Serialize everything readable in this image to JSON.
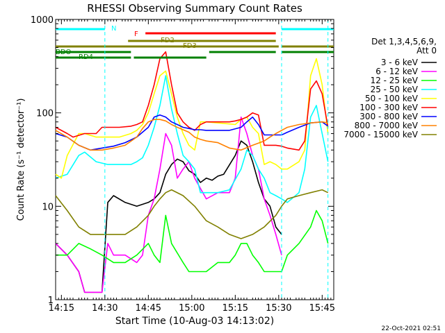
{
  "chart_data": {
    "type": "line",
    "title": "RHESSI Observing Summary Count Rates",
    "xlabel": "Start Time (10-Aug-03 14:13:02)",
    "ylabel": "Count Rate (s⁻¹ detector⁻¹)",
    "yscale": "log",
    "ylim": [
      1,
      1000
    ],
    "xlim_minutes": [
      0,
      96
    ],
    "x_tick_labels": [
      "14:15",
      "14:30",
      "14:45",
      "15:00",
      "15:15",
      "15:30",
      "15:45"
    ],
    "x_tick_minutes": [
      2,
      17,
      32,
      47,
      62,
      77,
      92
    ],
    "y_tick_labels": [
      "1",
      "10",
      "100",
      "1000"
    ],
    "y_tick_values": [
      1,
      10,
      100,
      1000
    ],
    "timestamp": "22-Oct-2021 02:51",
    "legend_header": [
      "Det 1,3,4,5,6,9,",
      "Att 0"
    ],
    "legend_position": "right",
    "series": [
      {
        "name": "3 - 6 keV",
        "color": "#000000",
        "x": [
          0,
          4,
          8,
          10,
          16,
          18,
          20,
          24,
          28,
          32,
          34,
          36,
          38,
          40,
          42,
          44,
          46,
          48,
          50,
          52,
          54,
          56,
          58,
          62,
          64,
          66,
          68,
          70,
          72,
          74,
          76,
          78
        ],
        "y": [
          4,
          3,
          2,
          1.2,
          1.2,
          11,
          13,
          11,
          10,
          11,
          12,
          14,
          22,
          28,
          32,
          30,
          24,
          22,
          18,
          20,
          19,
          21,
          22,
          35,
          50,
          45,
          30,
          18,
          12,
          10,
          6,
          5
        ]
      },
      {
        "name": "6 - 12 keV",
        "color": "#ff00ff",
        "x": [
          0,
          4,
          8,
          10,
          16,
          18,
          20,
          24,
          28,
          30,
          32,
          34,
          36,
          38,
          40,
          42,
          44,
          46,
          48,
          52,
          56,
          60,
          62,
          64,
          66,
          68,
          70,
          72,
          74,
          76,
          78
        ],
        "y": [
          4,
          3,
          2,
          1.2,
          1.2,
          4,
          3,
          3,
          2.5,
          3,
          8,
          12,
          25,
          60,
          45,
          20,
          25,
          30,
          20,
          12,
          14,
          14,
          20,
          90,
          60,
          35,
          25,
          12,
          8,
          5,
          3
        ]
      },
      {
        "name": "12 - 25 keV",
        "color": "#00ff00",
        "x": [
          0,
          4,
          8,
          12,
          16,
          20,
          24,
          28,
          32,
          34,
          36,
          38,
          40,
          44,
          46,
          48,
          52,
          56,
          60,
          62,
          64,
          66,
          68,
          70,
          72,
          74,
          76,
          78,
          80,
          84,
          88,
          90,
          92,
          94
        ],
        "y": [
          3,
          3,
          4,
          3.5,
          3,
          2.5,
          2.5,
          3,
          4,
          3,
          2.5,
          8,
          4,
          2.5,
          2,
          2,
          2,
          2.5,
          2.5,
          3,
          4,
          4,
          3,
          2.5,
          2,
          2,
          2,
          2,
          3,
          4,
          6,
          9,
          7,
          4
        ]
      },
      {
        "name": "25 - 50 keV",
        "color": "#00ffff",
        "x": [
          0,
          4,
          8,
          10,
          14,
          18,
          22,
          26,
          28,
          30,
          32,
          34,
          36,
          38,
          40,
          42,
          44,
          46,
          48,
          50,
          52,
          56,
          60,
          64,
          66,
          68,
          70,
          72,
          74,
          76,
          78,
          80,
          84,
          86,
          88,
          90,
          92,
          94
        ],
        "y": [
          20,
          22,
          35,
          38,
          30,
          28,
          28,
          28,
          30,
          33,
          45,
          70,
          120,
          250,
          110,
          60,
          35,
          30,
          25,
          14,
          14,
          14,
          15,
          25,
          40,
          35,
          25,
          20,
          14,
          13,
          12,
          11,
          14,
          25,
          90,
          120,
          60,
          30
        ]
      },
      {
        "name": "50 - 100 keV",
        "color": "#ffff00",
        "x": [
          0,
          2,
          4,
          8,
          10,
          14,
          18,
          22,
          26,
          28,
          30,
          32,
          34,
          36,
          38,
          40,
          42,
          44,
          46,
          48,
          50,
          52,
          56,
          60,
          62,
          64,
          66,
          68,
          70,
          72,
          74,
          76,
          78,
          80,
          84,
          86,
          88,
          90,
          92,
          94
        ],
        "y": [
          22,
          20,
          35,
          60,
          60,
          55,
          55,
          55,
          60,
          65,
          75,
          100,
          160,
          250,
          280,
          160,
          90,
          60,
          45,
          40,
          80,
          80,
          78,
          76,
          75,
          85,
          90,
          70,
          60,
          28,
          30,
          28,
          25,
          25,
          30,
          40,
          250,
          380,
          200,
          60
        ]
      },
      {
        "name": "100 - 300 keV",
        "color": "#ff0000",
        "x": [
          0,
          4,
          6,
          10,
          14,
          16,
          18,
          22,
          26,
          28,
          30,
          32,
          34,
          36,
          38,
          40,
          42,
          44,
          46,
          48,
          50,
          52,
          56,
          60,
          62,
          64,
          66,
          68,
          70,
          72,
          74,
          76,
          78,
          80,
          84,
          86,
          88,
          90,
          92,
          94
        ],
        "y": [
          70,
          60,
          55,
          60,
          60,
          70,
          70,
          70,
          72,
          75,
          80,
          120,
          200,
          380,
          450,
          200,
          100,
          80,
          70,
          65,
          75,
          80,
          80,
          80,
          82,
          85,
          90,
          100,
          95,
          45,
          45,
          45,
          44,
          42,
          40,
          50,
          180,
          220,
          160,
          70
        ]
      },
      {
        "name": "300 - 800 keV",
        "color": "#0000ff",
        "x": [
          0,
          4,
          8,
          12,
          16,
          20,
          24,
          28,
          32,
          34,
          36,
          38,
          40,
          42,
          44,
          46,
          48,
          50,
          52,
          56,
          60,
          64,
          66,
          68,
          70,
          72,
          74,
          76,
          78,
          80,
          84,
          88,
          92,
          94
        ],
        "y": [
          60,
          55,
          45,
          40,
          42,
          44,
          48,
          55,
          70,
          90,
          95,
          90,
          80,
          75,
          70,
          68,
          66,
          66,
          65,
          65,
          65,
          70,
          80,
          90,
          75,
          58,
          58,
          58,
          58,
          62,
          70,
          78,
          80,
          72
        ]
      },
      {
        "name": "800 - 7000 keV",
        "color": "#ff8000",
        "x": [
          0,
          4,
          8,
          12,
          16,
          20,
          24,
          28,
          30,
          32,
          34,
          36,
          38,
          40,
          42,
          44,
          46,
          48,
          50,
          52,
          56,
          60,
          64,
          68,
          72,
          74,
          76,
          78,
          80,
          84,
          88,
          92,
          94
        ],
        "y": [
          65,
          55,
          45,
          40,
          40,
          42,
          45,
          55,
          68,
          80,
          85,
          85,
          82,
          75,
          70,
          66,
          62,
          55,
          52,
          50,
          48,
          42,
          40,
          45,
          50,
          55,
          60,
          65,
          70,
          75,
          78,
          80,
          78
        ]
      },
      {
        "name": "7000 - 15000 keV",
        "color": "#808000",
        "x": [
          0,
          4,
          8,
          12,
          16,
          20,
          24,
          28,
          32,
          34,
          36,
          38,
          40,
          44,
          48,
          52,
          56,
          60,
          64,
          68,
          72,
          76,
          78,
          80,
          84,
          88,
          92,
          94
        ],
        "y": [
          13,
          9,
          6,
          5,
          5,
          5,
          5,
          6,
          8,
          10,
          12,
          14,
          15,
          13,
          10,
          7,
          6,
          5,
          4.5,
          5,
          6,
          8,
          10,
          12,
          13,
          14,
          15,
          14
        ]
      }
    ],
    "bars": [
      {
        "label": "N",
        "color": "#00ffff",
        "segments": [
          [
            0,
            17
          ],
          [
            78,
            96
          ]
        ]
      },
      {
        "label": "F",
        "color": "#ff0000",
        "segments": [
          [
            31,
            76
          ]
        ]
      },
      {
        "label": "FD2",
        "color": "#808000",
        "segments": [
          [
            25,
            76
          ]
        ]
      },
      {
        "label": "FD3",
        "color": "#808000",
        "segments": [
          [
            0,
            77
          ],
          [
            78,
            96
          ]
        ]
      },
      {
        "label": "BDO",
        "color": "#008000",
        "segments": [
          [
            0,
            26
          ],
          [
            53,
            76
          ],
          [
            78,
            96
          ]
        ]
      },
      {
        "label": "RD4",
        "color": "#008000",
        "segments": [
          [
            0,
            26
          ],
          [
            27,
            52
          ]
        ]
      }
    ],
    "vertical_markers": [
      {
        "color": "#00ffff",
        "x": [
          17,
          78,
          94
        ]
      }
    ]
  }
}
